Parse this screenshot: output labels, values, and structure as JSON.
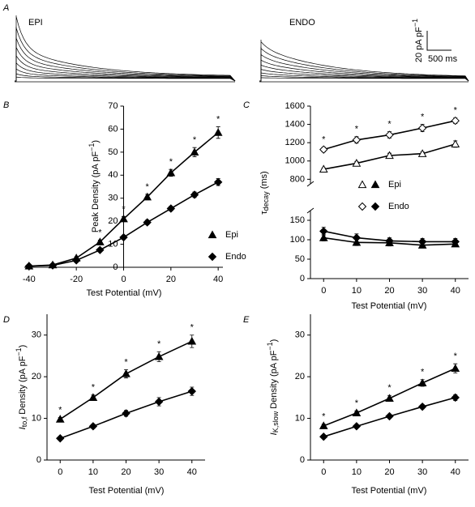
{
  "chart_data": [
    {
      "type": "traces",
      "panel": "A",
      "labels": [
        "EPI",
        "ENDO"
      ],
      "scale_bar": {
        "y_label": [
          "20 pA pF",
          {
            "sup": "−1"
          }
        ],
        "x_label": "500 ms"
      }
    },
    {
      "type": "line",
      "panel": "B",
      "xlabel": "Test Potential (mV)",
      "ylabel": [
        "Peak Density (pA pF",
        {
          "sup": "−1"
        },
        ")"
      ],
      "x": [
        -40,
        -30,
        -20,
        -10,
        0,
        10,
        20,
        30,
        40
      ],
      "xlim": [
        -42,
        42
      ],
      "xticks": [
        -40,
        -20,
        0,
        20,
        40
      ],
      "ylim": [
        0,
        70
      ],
      "yticks": [
        0,
        10,
        20,
        30,
        40,
        50,
        60,
        70
      ],
      "y_axis_crosses": "zero",
      "legend": "right",
      "significance": [
        null,
        null,
        null,
        "*",
        "*",
        "*",
        "*",
        "*",
        "*"
      ],
      "series": [
        {
          "name": "Epi",
          "marker": "triangle",
          "filled": true,
          "color": "#000000",
          "values": [
            0.5,
            1,
            4,
            11,
            21,
            30.5,
            41,
            50,
            58.5
          ],
          "errors": [
            0.3,
            0.3,
            0.5,
            0.8,
            1,
            1.2,
            1.5,
            2,
            2.5
          ]
        },
        {
          "name": "Endo",
          "marker": "diamond",
          "filled": true,
          "color": "#000000",
          "values": [
            0.5,
            0.8,
            3,
            7.5,
            13,
            19.5,
            25.5,
            31.5,
            37
          ],
          "errors": [
            0.3,
            0.3,
            0.4,
            0.6,
            0.8,
            1,
            1,
            1.2,
            1.5
          ]
        }
      ]
    },
    {
      "type": "line",
      "panel": "C",
      "xlabel": "Test Potential (mV)",
      "ylabel": [
        "τ",
        {
          "sub": "decay"
        },
        " (ms)"
      ],
      "x": [
        0,
        10,
        20,
        30,
        40
      ],
      "xlim": [
        -4,
        44
      ],
      "xticks": [
        0,
        10,
        20,
        30,
        40
      ],
      "ylim": [
        0,
        175
      ],
      "yticks": [
        0,
        50,
        100,
        150
      ],
      "y2lim": [
        750,
        1600
      ],
      "y2ticks": [
        800,
        1000,
        1200,
        1400,
        1600
      ],
      "broken_axis": true,
      "legend": "inside",
      "significance": [
        "*",
        "*",
        "*",
        "*",
        "*"
      ],
      "series": [
        {
          "name": "Epi",
          "marker": "triangle",
          "filled": false,
          "color": "#000000",
          "axis": "y2",
          "values": [
            910,
            975,
            1060,
            1080,
            1185
          ],
          "errors": [
            15,
            20,
            25,
            20,
            35
          ]
        },
        {
          "name": "Endo",
          "marker": "diamond",
          "filled": false,
          "color": "#000000",
          "axis": "y2",
          "values": [
            1125,
            1230,
            1285,
            1360,
            1440
          ],
          "errors": [
            25,
            35,
            35,
            40,
            30
          ]
        },
        {
          "name": "Epi",
          "marker": "triangle",
          "filled": true,
          "color": "#000000",
          "values": [
            105,
            93,
            92,
            86,
            89
          ],
          "errors": [
            8,
            8,
            8,
            7,
            7
          ]
        },
        {
          "name": "Endo",
          "marker": "diamond",
          "filled": true,
          "color": "#000000",
          "values": [
            122,
            105,
            97,
            95,
            95
          ],
          "errors": [
            10,
            10,
            8,
            8,
            8
          ]
        }
      ]
    },
    {
      "type": "line",
      "panel": "D",
      "xlabel": "Test Potential (mV)",
      "ylabel": [
        {
          "i": "I"
        },
        {
          "sub": "to,f"
        },
        " Density (pA pF",
        {
          "sup": "−1"
        },
        ")"
      ],
      "x": [
        0,
        10,
        20,
        30,
        40
      ],
      "xlim": [
        -4,
        44
      ],
      "xticks": [
        0,
        10,
        20,
        30,
        40
      ],
      "ylim": [
        0,
        35
      ],
      "yticks": [
        0,
        10,
        20,
        30
      ],
      "significance": [
        "*",
        "*",
        "*",
        "*",
        "*"
      ],
      "series": [
        {
          "name": "Epi",
          "marker": "triangle",
          "filled": true,
          "color": "#000000",
          "values": [
            9.8,
            15,
            20.7,
            24.8,
            28.5
          ],
          "errors": [
            0.4,
            0.6,
            1,
            1.2,
            1.5
          ]
        },
        {
          "name": "Endo",
          "marker": "diamond",
          "filled": true,
          "color": "#000000",
          "values": [
            5.2,
            8.1,
            11.2,
            14,
            16.5
          ],
          "errors": [
            0.4,
            0.5,
            0.7,
            1,
            1
          ]
        }
      ]
    },
    {
      "type": "line",
      "panel": "E",
      "xlabel": "Test Potential (mV)",
      "ylabel": [
        {
          "i": "I"
        },
        {
          "sub": "K,slow"
        },
        " Density (pA pF",
        {
          "sup": "−1"
        },
        ")"
      ],
      "x": [
        0,
        10,
        20,
        30,
        40
      ],
      "xlim": [
        -4,
        44
      ],
      "xticks": [
        0,
        10,
        20,
        30,
        40
      ],
      "ylim": [
        0,
        35
      ],
      "yticks": [
        0,
        10,
        20,
        30
      ],
      "significance": [
        "*",
        "*",
        "*",
        "*",
        "*"
      ],
      "series": [
        {
          "name": "Epi",
          "marker": "triangle",
          "filled": true,
          "color": "#000000",
          "values": [
            8.2,
            11.3,
            14.8,
            18.5,
            22
          ],
          "errors": [
            0.4,
            0.5,
            0.7,
            0.8,
            1.1
          ]
        },
        {
          "name": "Endo",
          "marker": "diamond",
          "filled": true,
          "color": "#000000",
          "values": [
            5.6,
            8.1,
            10.5,
            12.8,
            15
          ],
          "errors": [
            0.3,
            0.3,
            0.4,
            0.5,
            0.7
          ]
        }
      ]
    }
  ]
}
